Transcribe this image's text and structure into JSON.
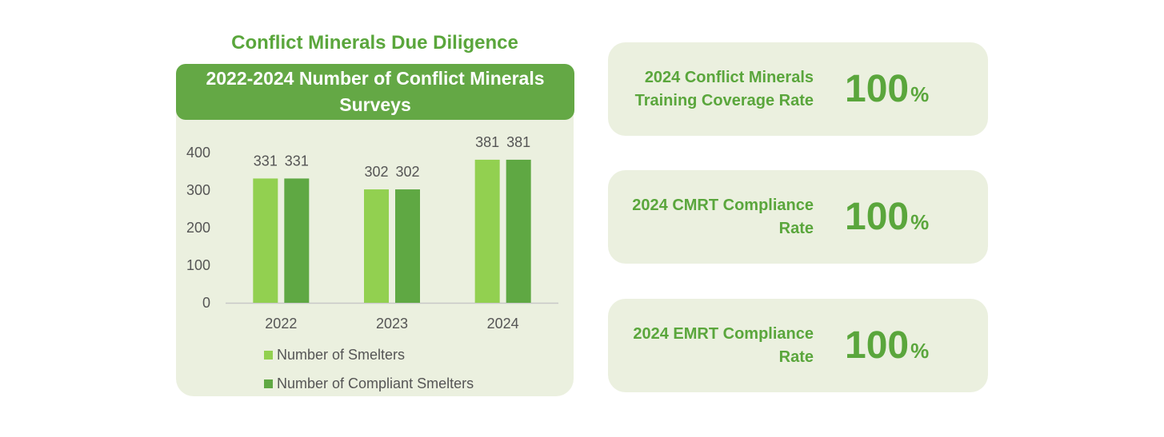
{
  "heading": "Conflict Minerals Due Diligence",
  "chart_data": {
    "type": "bar",
    "title": "2022-2024 Number of Conflict Minerals Surveys",
    "categories": [
      "2022",
      "2023",
      "2024"
    ],
    "series": [
      {
        "name": "Number of Smelters",
        "values": [
          331,
          302,
          381
        ],
        "color": "#92d050"
      },
      {
        "name": "Number of Compliant Smelters",
        "values": [
          331,
          302,
          381
        ],
        "color": "#5fa843"
      }
    ],
    "ylim": [
      0,
      400
    ],
    "yticks": [
      "0",
      "100",
      "200",
      "300",
      "400"
    ],
    "xlabel": "",
    "ylabel": "",
    "grid": false,
    "legend": "bottom"
  },
  "stats": [
    {
      "label": "2024 Conflict Minerals Training Coverage Rate",
      "value": "100",
      "unit": "%"
    },
    {
      "label": "2024 CMRT Compliance Rate",
      "value": "100",
      "unit": "%"
    },
    {
      "label": "2024 EMRT Compliance Rate",
      "value": "100",
      "unit": "%"
    }
  ],
  "colors": {
    "accent": "#5aa63c",
    "panel": "#ebf0df",
    "title_bar": "#64a845"
  }
}
